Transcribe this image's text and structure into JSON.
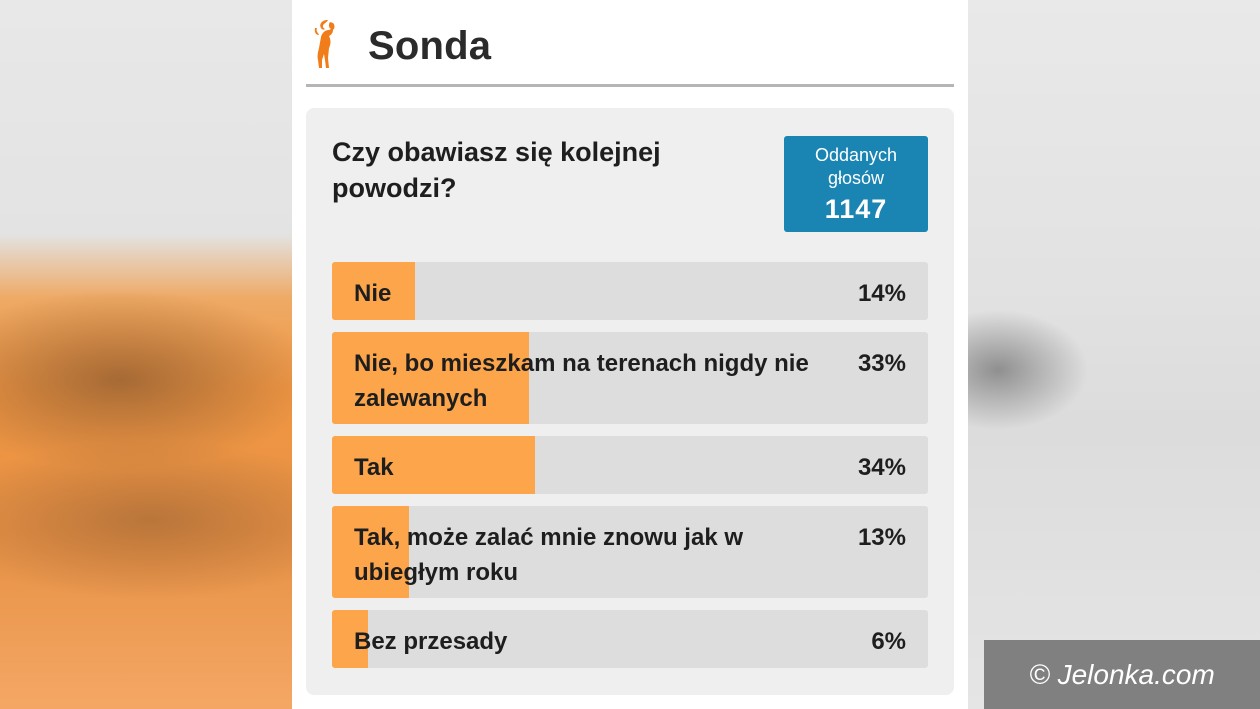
{
  "header": {
    "title": "Sonda",
    "logo_icon": "deer-logo-icon",
    "accent": "#f07d1a"
  },
  "poll": {
    "question": "Czy obawiasz się kolejnej powodzi?",
    "votes_label": "Oddanych głosów",
    "votes_count": "1147",
    "options": [
      {
        "label": "Nie",
        "percent_text": "14%",
        "percent": 14
      },
      {
        "label": "Nie, bo mieszkam na terenach nigdy nie zalewanych",
        "percent_text": "33%",
        "percent": 33
      },
      {
        "label": "Tak",
        "percent_text": "34%",
        "percent": 34
      },
      {
        "label": "Tak, może zalać mnie znowu jak w ubiegłym roku",
        "percent_text": "13%",
        "percent": 13
      },
      {
        "label": "Bez przesady",
        "percent_text": "6%",
        "percent": 6
      }
    ],
    "bar_color": "#fca54b",
    "track_color": "#dddddd",
    "badge_color": "#1a84b3"
  },
  "watermark": {
    "text": "© Jelonka.com"
  }
}
